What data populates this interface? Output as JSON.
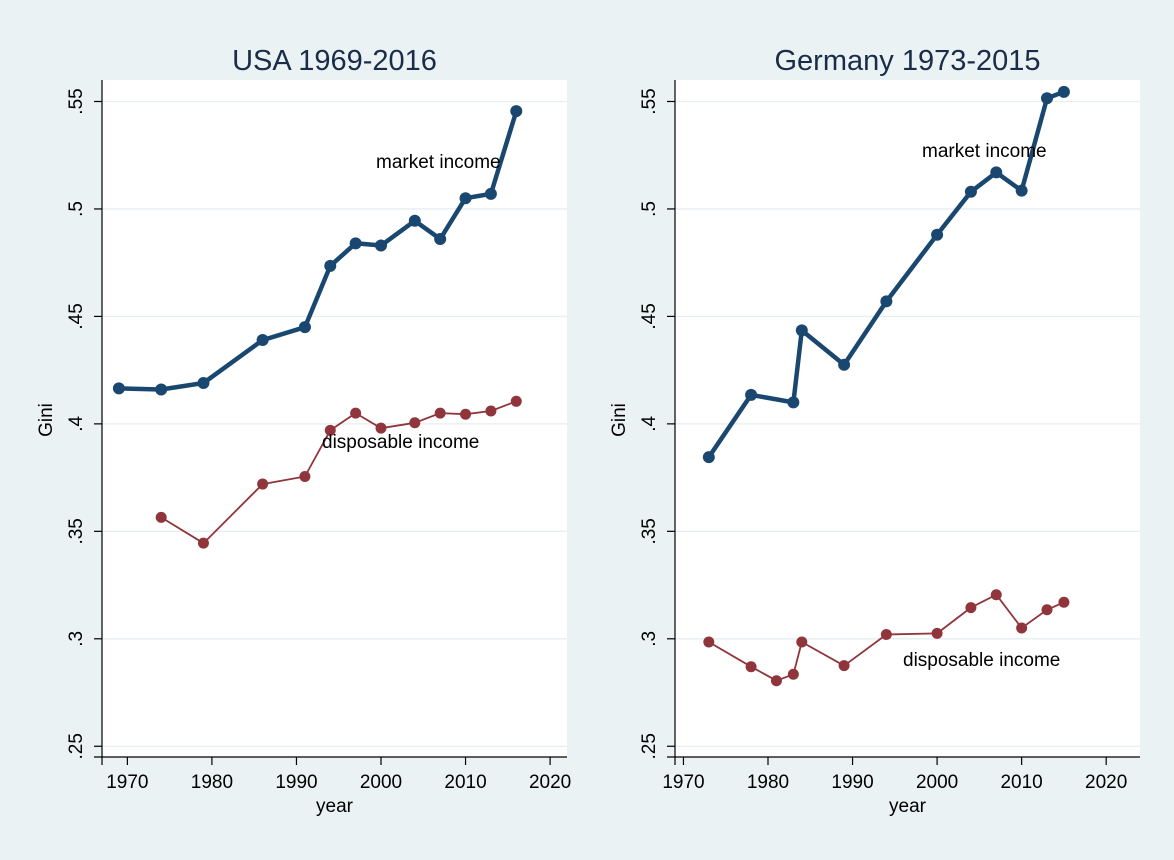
{
  "chart_data": [
    {
      "type": "line",
      "title": "USA 1969-2016",
      "xlabel": "year",
      "ylabel": "Gini",
      "xlim": [
        1967,
        2022
      ],
      "ylim": [
        0.245,
        0.56
      ],
      "xticks": [
        1970,
        1980,
        1990,
        2000,
        2010,
        2020
      ],
      "yticks": [
        0.25,
        0.3,
        0.35,
        0.4,
        0.45,
        0.5,
        0.55
      ],
      "ytick_labels": [
        ".25",
        ".3",
        ".35",
        ".4",
        ".45",
        ".5",
        ".55"
      ],
      "grid": "horizontal",
      "series": [
        {
          "label": "market income",
          "color": "#1a476f",
          "x": [
            1969,
            1974,
            1979,
            1986,
            1991,
            1994,
            1997,
            2000,
            2004,
            2007,
            2010,
            2013,
            2016
          ],
          "values": [
            0.4165,
            0.416,
            0.419,
            0.439,
            0.445,
            0.4735,
            0.484,
            0.483,
            0.4945,
            0.486,
            0.505,
            0.507,
            0.5455
          ]
        },
        {
          "label": "disposable income",
          "color": "#90353b",
          "x": [
            1974,
            1979,
            1986,
            1991,
            1994,
            1997,
            2000,
            2004,
            2007,
            2010,
            2013,
            2016
          ],
          "values": [
            0.3565,
            0.3445,
            0.372,
            0.3755,
            0.397,
            0.405,
            0.398,
            0.4005,
            0.405,
            0.4045,
            0.406,
            0.4105
          ]
        }
      ]
    },
    {
      "type": "line",
      "title": "Germany 1973-2015",
      "xlabel": "year",
      "ylabel": "Gini",
      "xlim": [
        1969,
        2024
      ],
      "ylim": [
        0.245,
        0.56
      ],
      "xticks": [
        1970,
        1980,
        1990,
        2000,
        2010,
        2020
      ],
      "yticks": [
        0.25,
        0.3,
        0.35,
        0.4,
        0.45,
        0.5,
        0.55
      ],
      "ytick_labels": [
        ".25",
        ".3",
        ".35",
        ".4",
        ".45",
        ".5",
        ".55"
      ],
      "grid": "horizontal",
      "series": [
        {
          "label": "market income",
          "color": "#1a476f",
          "x": [
            1973,
            1978,
            1983,
            1984,
            1989,
            1994,
            2000,
            2004,
            2007,
            2010,
            2013,
            2015
          ],
          "values": [
            0.3845,
            0.4135,
            0.41,
            0.4435,
            0.4275,
            0.457,
            0.488,
            0.508,
            0.517,
            0.5085,
            0.5515,
            0.5545
          ]
        },
        {
          "label": "disposable income",
          "color": "#90353b",
          "x": [
            1973,
            1978,
            1981,
            1983,
            1984,
            1989,
            1994,
            2000,
            2004,
            2007,
            2010,
            2013,
            2015
          ],
          "values": [
            0.2985,
            0.287,
            0.2805,
            0.2835,
            0.2985,
            0.2875,
            0.302,
            0.3025,
            0.3145,
            0.3205,
            0.305,
            0.3135,
            0.317
          ]
        }
      ]
    }
  ]
}
